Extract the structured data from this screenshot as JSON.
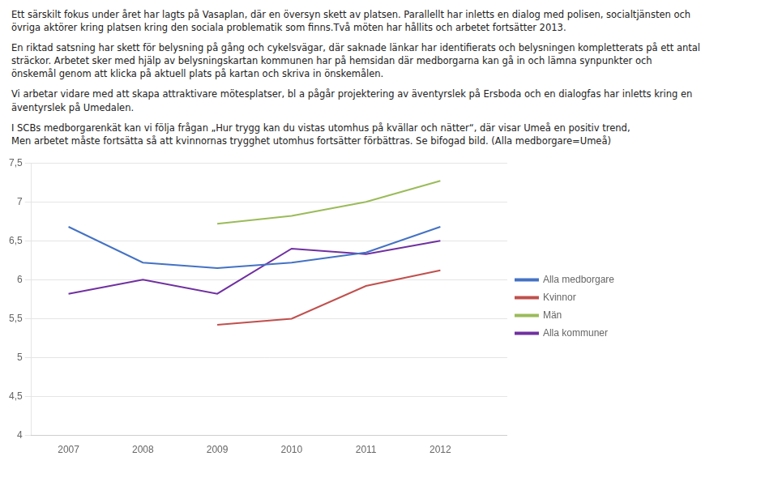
{
  "chart_data": {
    "type": "line",
    "annotations": [
      "Ett särskilt fokus under året har lagts på Vasaplan, där en översyn skett av platsen. Parallellt har inletts en dialog med polisen, socialtjänsten och\növriga aktörer kring platsen kring den sociala problematik som finns.Två möten har hållits och arbetet fortsätter 2013.",
      "En riktad satsning har skett för belysning på gång och cykelsvägar, där saknade länkar har identifierats och belysningen kompletterats på ett antal\nsträckor. Arbetet sker med hjälp av belysningskartan kommunen har på hemsidan där medborgarna kan gå in och lämna synpunkter och\nönskemål genom att klicka på aktuell plats på kartan och skriva in önskemålen.",
      "Vi arbetar vidare med att skapa attraktivare mötesplatser, bl a pågår projektering av äventyrslek på Ersboda och en dialogfas har inletts kring en\näventyrslek på Umedalen.",
      "I SCBs medborgarenkät kan vi följa frågan „Hur trygg kan du vistas utomhus på kvällar och nätter“, där visar Umeå en positiv trend,\nMen arbetet måste fortsätta så att kvinnornas trygghet utomhus fortsätter förbättras. Se bifogad bild. (Alla medborgare=Umeå)"
    ],
    "x": [
      2007,
      2008,
      2009,
      2010,
      2011,
      2012
    ],
    "xlim": [
      2006.5,
      2012.9
    ],
    "xticks": [
      2007,
      2008,
      2009,
      2010,
      2011,
      2012
    ],
    "series": [
      {
        "name": "Alla medborgare",
        "color": "#4472C4",
        "values": [
          6.68,
          6.22,
          6.15,
          6.22,
          6.35,
          6.68
        ]
      },
      {
        "name": "Kvinnor",
        "color": "#C0504D",
        "values": [
          null,
          null,
          5.42,
          5.5,
          5.92,
          6.12
        ]
      },
      {
        "name": "Män",
        "color": "#9BBB59",
        "values": [
          null,
          null,
          6.72,
          6.82,
          7.0,
          7.27
        ]
      },
      {
        "name": "Alla kommuner",
        "color": "#7030A0",
        "values": [
          5.82,
          6.0,
          5.82,
          6.4,
          6.33,
          6.5
        ]
      }
    ],
    "ylim": [
      4.0,
      7.5
    ],
    "yticks": [
      4,
      {
        "value": 4.5,
        "label": "4,5"
      },
      5,
      {
        "value": 5.5,
        "label": "5,5"
      },
      6,
      {
        "value": 6.5,
        "label": "6,5"
      },
      7,
      {
        "value": 7.5,
        "label": "7,5"
      }
    ],
    "grid": "y",
    "legend": "right"
  }
}
